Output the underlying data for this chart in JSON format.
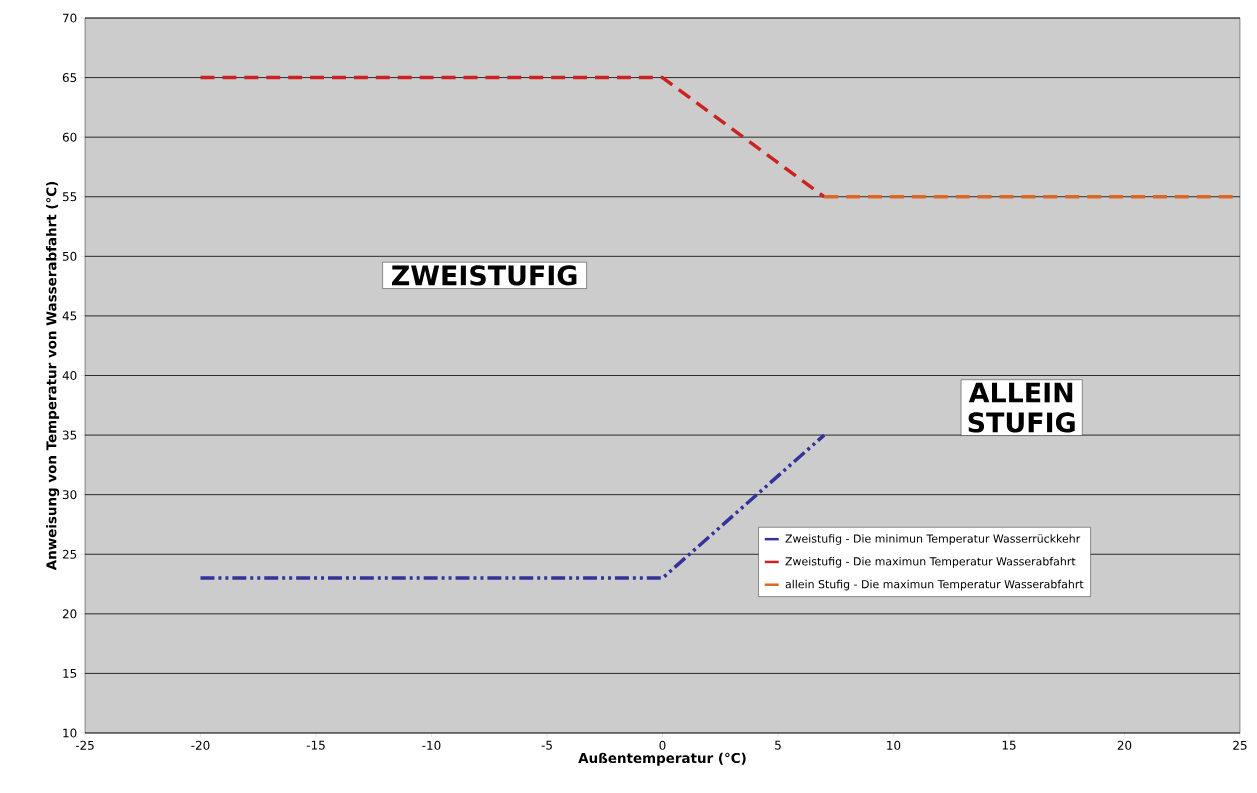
{
  "chart_data": {
    "type": "line",
    "xlabel": "Außentemperatur (°C)",
    "ylabel": "Anweisung von Temperatur von Wasserabfahrt (°C)",
    "xlim": [
      -25,
      25
    ],
    "xticks": [
      -25,
      -20,
      -15,
      -10,
      -5,
      0,
      5,
      10,
      15,
      20,
      25
    ],
    "ylim": [
      10,
      70
    ],
    "yticks": [
      10,
      15,
      20,
      25,
      30,
      35,
      40,
      45,
      50,
      55,
      60,
      65,
      70
    ],
    "grid": "y",
    "legend": "bottom right",
    "marker": "none",
    "series": [
      {
        "name": "Zweistufig - Die minimun Temperatur Wasserrückkehr",
        "color": "#333399",
        "line_style": "dashdotdotted",
        "x": [
          -20,
          0,
          7
        ],
        "values": [
          23,
          23,
          35
        ]
      },
      {
        "name": "Zweistufig - Die maximun Temperatur Wasserabfahrt",
        "color": "#cc2222",
        "line_style": "dashed",
        "x": [
          -20,
          0,
          7
        ],
        "values": [
          65,
          65,
          55
        ]
      },
      {
        "name": "allein Stufig - Die maximun Temperatur Wasserabfahrt",
        "color": "#dd6622",
        "line_style": "dashed",
        "x": [
          7,
          25
        ],
        "values": [
          55,
          55
        ]
      }
    ],
    "annotations": [
      "ZWEISTUFIG",
      "ALLEIN STUFIG"
    ]
  }
}
